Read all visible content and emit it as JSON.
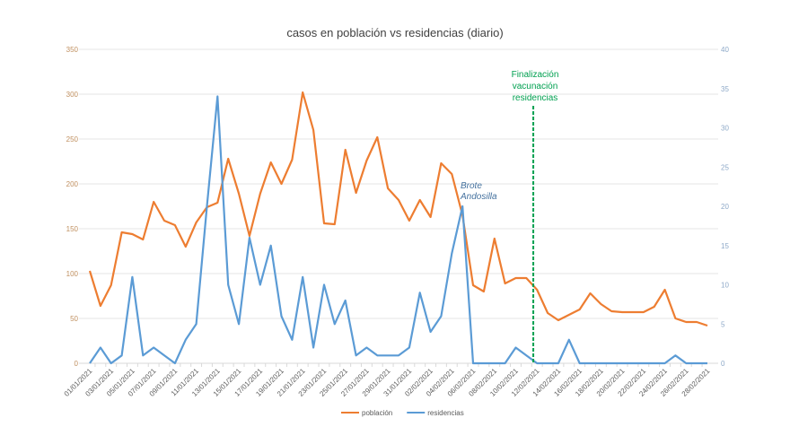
{
  "chart_data": {
    "type": "line",
    "title": "casos en población vs residencias (diario)",
    "x": [
      "01/01/2021",
      "02/01/2021",
      "03/01/2021",
      "04/01/2021",
      "05/01/2021",
      "06/01/2021",
      "07/01/2021",
      "08/01/2021",
      "09/01/2021",
      "10/01/2021",
      "11/01/2021",
      "12/01/2021",
      "13/01/2021",
      "14/01/2021",
      "15/01/2021",
      "16/01/2021",
      "17/01/2021",
      "18/01/2021",
      "19/01/2021",
      "20/01/2021",
      "21/01/2021",
      "22/01/2021",
      "23/01/2021",
      "24/01/2021",
      "25/01/2021",
      "26/01/2021",
      "27/01/2021",
      "28/01/2021",
      "29/01/2021",
      "30/01/2021",
      "31/01/2021",
      "01/02/2021",
      "02/02/2021",
      "03/02/2021",
      "04/02/2021",
      "05/02/2021",
      "06/02/2021",
      "07/02/2021",
      "08/02/2021",
      "09/02/2021",
      "10/02/2021",
      "11/02/2021",
      "12/02/2021",
      "13/02/2021",
      "14/02/2021",
      "15/02/2021",
      "16/02/2021",
      "17/02/2021",
      "18/02/2021",
      "19/02/2021",
      "20/02/2021",
      "21/02/2021",
      "22/02/2021",
      "23/02/2021",
      "24/02/2021",
      "25/02/2021",
      "26/02/2021",
      "27/02/2021",
      "28/02/2021"
    ],
    "x_tick_labels_shown": "every other date starting 01/01/2021",
    "series": [
      {
        "name": "población",
        "axis": "left",
        "color": "#ED7D31",
        "values": [
          103,
          64,
          87,
          146,
          144,
          138,
          180,
          159,
          154,
          130,
          157,
          174,
          179,
          228,
          189,
          142,
          189,
          224,
          200,
          227,
          302,
          260,
          156,
          155,
          238,
          190,
          226,
          252,
          195,
          182,
          159,
          182,
          163,
          223,
          211,
          165,
          87,
          80,
          139,
          89,
          95,
          95,
          82,
          56,
          48,
          54,
          60,
          78,
          66,
          58,
          57,
          57,
          57,
          63,
          82,
          50,
          46,
          46,
          42
        ]
      },
      {
        "name": "residencias",
        "axis": "right",
        "color": "#5B9BD5",
        "values": [
          0,
          2,
          0,
          1,
          11,
          1,
          2,
          1,
          0,
          3,
          5,
          20,
          34,
          10,
          5,
          16,
          10,
          15,
          6,
          3,
          11,
          2,
          10,
          5,
          8,
          1,
          2,
          1,
          1,
          1,
          2,
          9,
          4,
          6,
          14,
          20,
          0,
          0,
          0,
          0,
          2,
          1,
          0,
          0,
          0,
          3,
          0,
          0,
          0,
          0,
          0,
          0,
          0,
          0,
          0,
          1,
          0,
          0,
          0
        ]
      }
    ],
    "y_left": {
      "range": [
        0,
        350
      ],
      "ticks": [
        0,
        50,
        100,
        150,
        200,
        250,
        300,
        350
      ],
      "color": "#C09060"
    },
    "y_right": {
      "range": [
        0,
        40
      ],
      "ticks": [
        0,
        5,
        10,
        15,
        20,
        25,
        30,
        35,
        40
      ],
      "color": "#8EA9C8"
    },
    "grid": true,
    "legend": "bottom",
    "annotations": [
      {
        "text_lines": [
          "Brote",
          "Andosilla"
        ],
        "at": "05/02/2021",
        "color": "#44719E"
      },
      {
        "text_lines": [
          "Finalización",
          "vacunación",
          "residencias"
        ],
        "at": "between 11/02/2021 and 12/02/2021",
        "style": "dashed vertical line",
        "color": "#00A050"
      }
    ]
  }
}
